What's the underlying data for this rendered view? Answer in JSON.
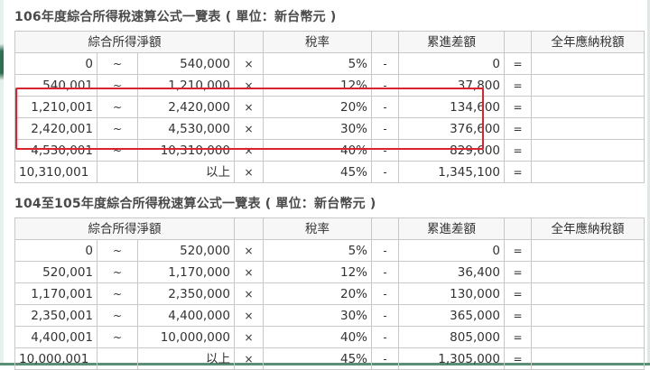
{
  "tables": [
    {
      "title": "106年度綜合所得稅速算公式一覽表 ( 單位：新台幣元 )",
      "headers": {
        "income": "綜合所得淨額",
        "rate": "稅率",
        "deduction": "累進差額",
        "total": "全年應納稅額"
      },
      "rows": [
        {
          "from": "0",
          "sep": "~",
          "to": "540,000",
          "times": "×",
          "rate": "5%",
          "minus": "-",
          "deduction": "0",
          "equals": "="
        },
        {
          "from": "540,001",
          "sep": "~",
          "to": "1,210,000",
          "times": "×",
          "rate": "12%",
          "minus": "-",
          "deduction": "37,800",
          "equals": "="
        },
        {
          "from": "1,210,001",
          "sep": "~",
          "to": "2,420,000",
          "times": "×",
          "rate": "20%",
          "minus": "-",
          "deduction": "134,600",
          "equals": "="
        },
        {
          "from": "2,420,001",
          "sep": "~",
          "to": "4,530,000",
          "times": "×",
          "rate": "30%",
          "minus": "-",
          "deduction": "376,600",
          "equals": "="
        },
        {
          "from": "4,530,001",
          "sep": "~",
          "to": "10,310,000",
          "times": "×",
          "rate": "40%",
          "minus": "-",
          "deduction": "829,600",
          "equals": "="
        },
        {
          "from": "10,310,001",
          "sep": "",
          "to": "以上",
          "times": "×",
          "rate": "45%",
          "minus": "-",
          "deduction": "1,345,100",
          "equals": "="
        }
      ]
    },
    {
      "title": "104至105年度綜合所得稅速算公式一覽表 ( 單位：新台幣元 )",
      "headers": {
        "income": "綜合所得淨額",
        "rate": "稅率",
        "deduction": "累進差額",
        "total": "全年應納稅額"
      },
      "rows": [
        {
          "from": "0",
          "sep": "~",
          "to": "520,000",
          "times": "×",
          "rate": "5%",
          "minus": "-",
          "deduction": "0",
          "equals": "="
        },
        {
          "from": "520,001",
          "sep": "~",
          "to": "1,170,000",
          "times": "×",
          "rate": "12%",
          "minus": "-",
          "deduction": "36,400",
          "equals": "="
        },
        {
          "from": "1,170,001",
          "sep": "~",
          "to": "2,350,000",
          "times": "×",
          "rate": "20%",
          "minus": "-",
          "deduction": "130,000",
          "equals": "="
        },
        {
          "from": "2,350,001",
          "sep": "~",
          "to": "4,400,000",
          "times": "×",
          "rate": "30%",
          "minus": "-",
          "deduction": "365,000",
          "equals": "="
        },
        {
          "from": "4,400,001",
          "sep": "~",
          "to": "10,000,000",
          "times": "×",
          "rate": "40%",
          "minus": "-",
          "deduction": "805,000",
          "equals": "="
        },
        {
          "from": "10,000,001",
          "sep": "",
          "to": "以上",
          "times": "×",
          "rate": "45%",
          "minus": "-",
          "deduction": "1,305,000",
          "equals": "="
        }
      ]
    }
  ],
  "colors": {
    "highlight": "#d9232e",
    "border": "#c8c8c8",
    "accent": "#2f6e52"
  }
}
